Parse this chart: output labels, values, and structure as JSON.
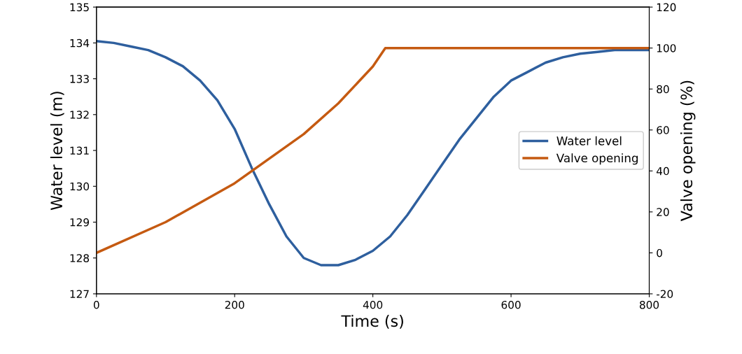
{
  "chart_data": {
    "type": "line",
    "xlabel": "Time (s)",
    "ylabel": "Water level (m)",
    "y2label": "Valve opening (%)",
    "xlim": [
      0,
      800
    ],
    "xticks": [
      0,
      200,
      400,
      600,
      800
    ],
    "ylim": [
      127,
      135
    ],
    "yticks": [
      127,
      128,
      129,
      130,
      131,
      132,
      133,
      134,
      135
    ],
    "y2lim": [
      -20,
      120
    ],
    "y2ticks": [
      -20,
      0,
      20,
      40,
      60,
      80,
      100,
      120
    ],
    "grid": false,
    "legend": "center right",
    "line_style": "solid",
    "marker": "none",
    "series": [
      {
        "name": "Water level",
        "color": "#2e5f9e",
        "x": [
          0,
          25,
          50,
          75,
          100,
          125,
          150,
          175,
          200,
          225,
          250,
          275,
          300,
          325,
          350,
          375,
          400,
          425,
          450,
          475,
          500,
          525,
          550,
          575,
          600,
          625,
          650,
          675,
          700,
          725,
          750,
          775,
          800
        ],
        "values": [
          134.05,
          134.0,
          133.9,
          133.8,
          133.6,
          133.35,
          132.95,
          132.4,
          131.6,
          130.5,
          129.5,
          128.6,
          128.0,
          127.8,
          127.8,
          127.95,
          128.2,
          128.6,
          129.2,
          129.9,
          130.6,
          131.3,
          131.9,
          132.5,
          132.95,
          133.2,
          133.45,
          133.6,
          133.7,
          133.75,
          133.8,
          133.8,
          133.8
        ]
      },
      {
        "name": "Valve opening",
        "color": "#c55a11",
        "axis": "y2",
        "x": [
          0,
          100,
          200,
          300,
          350,
          400,
          418,
          800
        ],
        "values": [
          0,
          15,
          34,
          58,
          73,
          91,
          100,
          100
        ]
      }
    ]
  }
}
